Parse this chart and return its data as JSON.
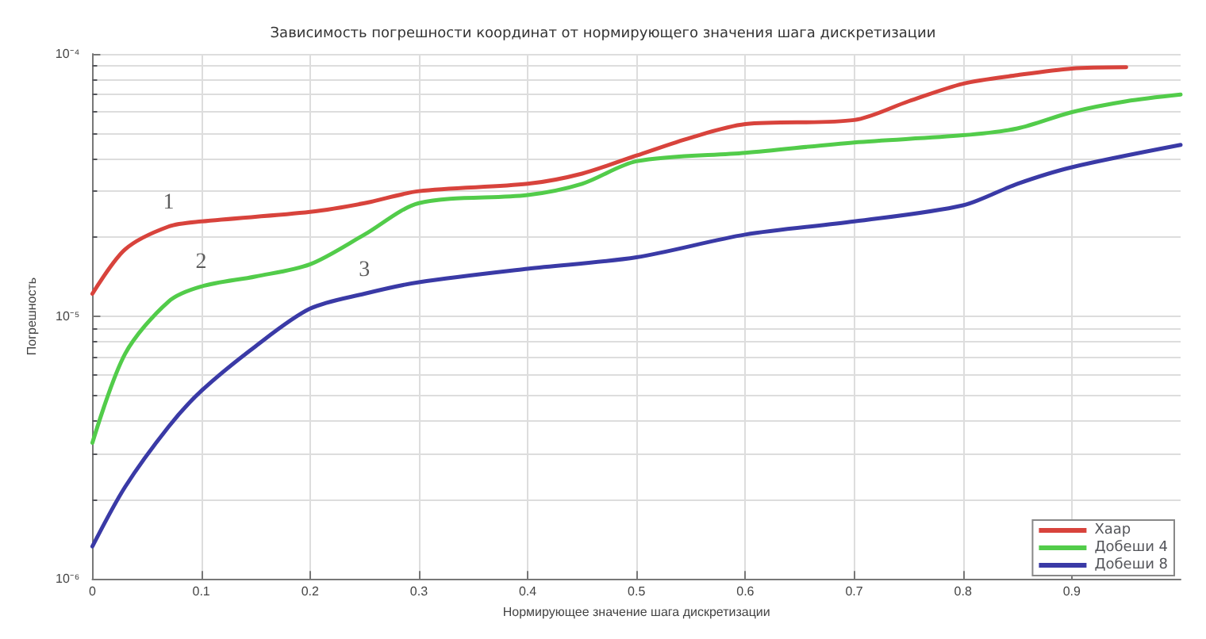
{
  "chart_data": {
    "type": "line",
    "title": "Зависимость погрешности координат от нормирующего значения шага дискретизации",
    "xlabel": "Нормирующее значение шага дискретизации",
    "ylabel": "Погрешность",
    "x": [
      0,
      0.03,
      0.07,
      0.1,
      0.2,
      0.25,
      0.3,
      0.4,
      0.45,
      0.5,
      0.55,
      0.6,
      0.7,
      0.75,
      0.8,
      0.85,
      0.9,
      0.95
    ],
    "series": [
      {
        "name": "Хаар",
        "color": "#d8433c",
        "values": [
          1.22e-05,
          1.8e-05,
          2.2e-05,
          2.3e-05,
          2.5e-05,
          2.7e-05,
          3e-05,
          3.2e-05,
          3.5e-05,
          4.1e-05,
          4.8e-05,
          5.4e-05,
          5.6e-05,
          6.6e-05,
          7.7e-05,
          8.3e-05,
          8.8e-05,
          8.9e-05
        ]
      },
      {
        "name": "Добеши 4",
        "color": "#52cc4a",
        "x": [
          0,
          0.03,
          0.07,
          0.1,
          0.15,
          0.2,
          0.25,
          0.3,
          0.4,
          0.45,
          0.5,
          0.6,
          0.7,
          0.8,
          0.85,
          0.9,
          0.95,
          1.0
        ],
        "values": [
          3.3e-06,
          7.2e-06,
          1.14e-05,
          1.3e-05,
          1.42e-05,
          1.58e-05,
          2.05e-05,
          2.7e-05,
          2.9e-05,
          3.2e-05,
          3.9e-05,
          4.2e-05,
          4.6e-05,
          4.9e-05,
          5.2e-05,
          6e-05,
          6.6e-05,
          7e-05
        ]
      },
      {
        "name": "Добеши 8",
        "color": "#3a3aa6",
        "x": [
          0,
          0.03,
          0.07,
          0.1,
          0.15,
          0.2,
          0.25,
          0.3,
          0.4,
          0.5,
          0.6,
          0.7,
          0.8,
          0.85,
          0.9,
          1.0
        ],
        "values": [
          1.33e-06,
          2.24e-06,
          3.8e-06,
          5.2e-06,
          7.7e-06,
          1.07e-05,
          1.22e-05,
          1.35e-05,
          1.52e-05,
          1.68e-05,
          2.05e-05,
          2.3e-05,
          2.65e-05,
          3.2e-05,
          3.7e-05,
          4.5e-05
        ]
      }
    ],
    "log": "y",
    "xlim": [
      0,
      1
    ],
    "xticks": [
      0,
      0.1,
      0.2,
      0.3,
      0.4,
      0.5,
      0.6,
      0.7,
      0.8,
      0.9
    ],
    "ylim": [
      1e-06,
      0.0001
    ],
    "yticks": [
      {
        "value": 1e-06,
        "label": "10⁻⁶"
      },
      {
        "value": 1e-05,
        "label": "10⁻⁵"
      },
      {
        "value": 0.0001,
        "label": "10⁻⁴"
      }
    ],
    "annotations": [
      {
        "text": "1",
        "x": 0.07,
        "y": 2.2e-05
      },
      {
        "text": "2",
        "x": 0.1,
        "y": 1.3e-05
      },
      {
        "text": "3",
        "x": 0.25,
        "y": 1.22e-05
      }
    ],
    "grid": true,
    "legend": "bottom right",
    "marker": "none",
    "line_style": "solid"
  }
}
